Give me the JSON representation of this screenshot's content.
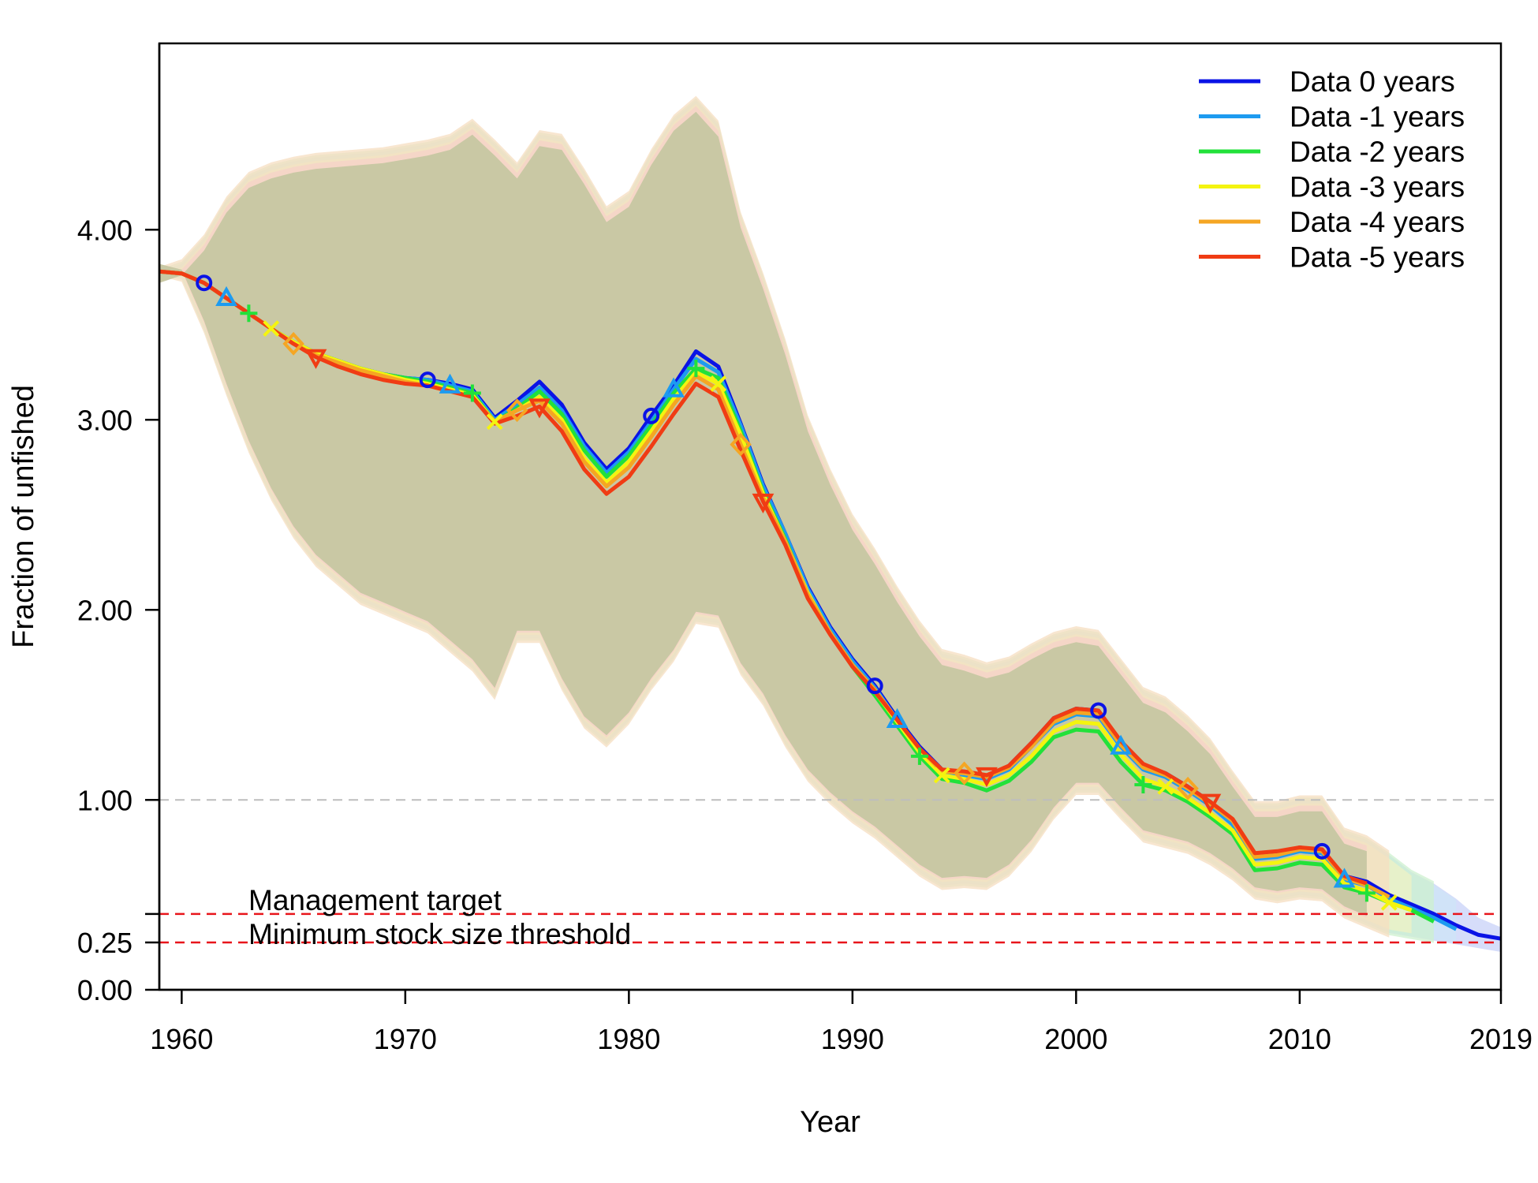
{
  "chart_data": {
    "type": "line",
    "title": "",
    "xlabel": "Year",
    "ylabel": "Fraction of unfished",
    "xlim": [
      1959,
      2019
    ],
    "ylim": [
      0,
      5
    ],
    "x_ticks": [
      "1960",
      "1970",
      "1980",
      "1990",
      "2000",
      "2010",
      "2019"
    ],
    "y_ticks": [
      "0.00",
      "0.25",
      "1.00",
      "2.00",
      "3.00",
      "4.00"
    ],
    "grid": false,
    "legend_position": "top-right",
    "reference_lines": [
      {
        "label": "",
        "y": 1.0,
        "color": "#bdbdbd",
        "style": "dashed"
      },
      {
        "label": "Management target",
        "y": 0.4,
        "color": "#e8151b",
        "style": "dashed"
      },
      {
        "label": "Minimum stock size threshold",
        "y": 0.25,
        "color": "#e8151b",
        "style": "dashed"
      }
    ],
    "series": [
      {
        "name": "Data 0 years",
        "color": "#0a13e6",
        "marker": "circle",
        "end_year": 2019,
        "values": [
          3.78,
          3.77,
          3.72,
          3.64,
          3.56,
          3.48,
          3.41,
          3.35,
          3.31,
          3.27,
          3.24,
          3.22,
          3.21,
          3.19,
          3.16,
          3.01,
          3.1,
          3.2,
          3.08,
          2.88,
          2.74,
          2.85,
          3.02,
          3.18,
          3.36,
          3.28,
          2.98,
          2.66,
          2.4,
          2.12,
          1.91,
          1.74,
          1.6,
          1.43,
          1.28,
          1.16,
          1.14,
          1.12,
          1.18,
          1.3,
          1.43,
          1.48,
          1.47,
          1.3,
          1.18,
          1.14,
          1.07,
          0.99,
          0.89,
          0.71,
          0.72,
          0.75,
          0.73,
          0.6,
          0.57,
          0.5,
          0.45,
          0.4,
          0.34,
          0.29,
          0.27
        ]
      },
      {
        "name": "Data -1 years",
        "color": "#1d9bf0",
        "marker": "triangle",
        "end_year": 2018,
        "values": [
          3.78,
          3.77,
          3.72,
          3.64,
          3.56,
          3.48,
          3.41,
          3.35,
          3.31,
          3.27,
          3.24,
          3.22,
          3.21,
          3.18,
          3.15,
          3.0,
          3.08,
          3.17,
          3.05,
          2.86,
          2.72,
          2.83,
          2.99,
          3.16,
          3.32,
          3.25,
          2.97,
          2.65,
          2.4,
          2.11,
          1.9,
          1.73,
          1.59,
          1.42,
          1.27,
          1.15,
          1.13,
          1.11,
          1.16,
          1.28,
          1.4,
          1.45,
          1.44,
          1.28,
          1.16,
          1.12,
          1.05,
          0.97,
          0.87,
          0.69,
          0.7,
          0.73,
          0.72,
          0.58,
          0.55,
          0.48,
          0.43,
          0.38,
          0.32
        ]
      },
      {
        "name": "Data -2 years",
        "color": "#22e13a",
        "marker": "plus",
        "end_year": 2017,
        "values": [
          3.78,
          3.77,
          3.72,
          3.64,
          3.56,
          3.48,
          3.41,
          3.35,
          3.31,
          3.27,
          3.24,
          3.22,
          3.2,
          3.17,
          3.14,
          2.99,
          3.06,
          3.15,
          3.03,
          2.84,
          2.7,
          2.81,
          2.97,
          3.14,
          3.27,
          3.22,
          2.94,
          2.62,
          2.37,
          2.08,
          1.88,
          1.7,
          1.55,
          1.39,
          1.23,
          1.11,
          1.09,
          1.05,
          1.1,
          1.2,
          1.33,
          1.37,
          1.36,
          1.2,
          1.08,
          1.05,
          0.99,
          0.91,
          0.82,
          0.63,
          0.64,
          0.67,
          0.66,
          0.54,
          0.51,
          0.46,
          0.42,
          0.36
        ]
      },
      {
        "name": "Data -3 years",
        "color": "#f4f410",
        "marker": "cross",
        "end_year": 2016,
        "values": [
          3.78,
          3.77,
          3.72,
          3.64,
          3.56,
          3.48,
          3.41,
          3.35,
          3.31,
          3.27,
          3.24,
          3.21,
          3.19,
          3.16,
          3.13,
          2.99,
          3.05,
          3.12,
          3.0,
          2.8,
          2.67,
          2.78,
          2.94,
          3.11,
          3.25,
          3.19,
          2.92,
          2.61,
          2.36,
          2.09,
          1.88,
          1.71,
          1.57,
          1.41,
          1.25,
          1.13,
          1.11,
          1.08,
          1.13,
          1.23,
          1.36,
          1.41,
          1.4,
          1.24,
          1.11,
          1.07,
          1.01,
          0.93,
          0.84,
          0.66,
          0.67,
          0.7,
          0.69,
          0.56,
          0.52,
          0.46,
          0.42
        ]
      },
      {
        "name": "Data -4 years",
        "color": "#f5a623",
        "marker": "diamond",
        "end_year": 2015,
        "values": [
          3.78,
          3.77,
          3.72,
          3.64,
          3.56,
          3.48,
          3.4,
          3.34,
          3.3,
          3.26,
          3.23,
          3.2,
          3.18,
          3.15,
          3.12,
          2.99,
          3.05,
          3.1,
          2.98,
          2.78,
          2.65,
          2.75,
          2.91,
          3.08,
          3.23,
          3.16,
          2.87,
          2.59,
          2.36,
          2.08,
          1.88,
          1.71,
          1.58,
          1.42,
          1.27,
          1.15,
          1.14,
          1.12,
          1.17,
          1.28,
          1.41,
          1.46,
          1.45,
          1.29,
          1.17,
          1.13,
          1.06,
          0.98,
          0.89,
          0.7,
          0.71,
          0.74,
          0.73,
          0.59,
          0.55,
          0.49
        ]
      },
      {
        "name": "Data -5 years",
        "color": "#f03c14",
        "marker": "triangle-down",
        "end_year": 2014,
        "values": [
          3.78,
          3.77,
          3.72,
          3.64,
          3.56,
          3.48,
          3.4,
          3.33,
          3.28,
          3.24,
          3.21,
          3.19,
          3.18,
          3.15,
          3.12,
          2.98,
          3.02,
          3.07,
          2.94,
          2.74,
          2.61,
          2.7,
          2.86,
          3.03,
          3.19,
          3.12,
          2.84,
          2.57,
          2.34,
          2.06,
          1.87,
          1.7,
          1.57,
          1.42,
          1.27,
          1.16,
          1.15,
          1.13,
          1.18,
          1.3,
          1.43,
          1.48,
          1.47,
          1.31,
          1.19,
          1.14,
          1.07,
          0.99,
          0.9,
          0.72,
          0.73,
          0.75,
          0.74,
          0.6,
          0.56
        ]
      }
    ],
    "uncertainty_band": {
      "lower": [
        3.78,
        3.75,
        3.48,
        3.15,
        2.85,
        2.6,
        2.4,
        2.25,
        2.15,
        2.05,
        2.0,
        1.95,
        1.9,
        1.8,
        1.7,
        1.55,
        1.85,
        1.85,
        1.6,
        1.4,
        1.3,
        1.42,
        1.6,
        1.75,
        1.95,
        1.93,
        1.68,
        1.52,
        1.3,
        1.12,
        1.0,
        0.9,
        0.82,
        0.72,
        0.62,
        0.55,
        0.56,
        0.55,
        0.62,
        0.75,
        0.92,
        1.05,
        1.05,
        0.92,
        0.8,
        0.77,
        0.74,
        0.68,
        0.6,
        0.5,
        0.48,
        0.5,
        0.49,
        0.4,
        0.35,
        0.3,
        0.28,
        0.26,
        0.24,
        0.22,
        0.2
      ],
      "upper": [
        3.78,
        3.82,
        3.95,
        4.15,
        4.28,
        4.33,
        4.36,
        4.38,
        4.39,
        4.4,
        4.41,
        4.43,
        4.45,
        4.48,
        4.56,
        4.45,
        4.33,
        4.5,
        4.48,
        4.3,
        4.1,
        4.18,
        4.4,
        4.58,
        4.68,
        4.55,
        4.07,
        3.75,
        3.4,
        3.0,
        2.72,
        2.48,
        2.3,
        2.1,
        1.92,
        1.77,
        1.74,
        1.7,
        1.73,
        1.8,
        1.86,
        1.89,
        1.87,
        1.72,
        1.57,
        1.52,
        1.42,
        1.3,
        1.13,
        0.97,
        0.97,
        1.0,
        1.0,
        0.83,
        0.79,
        0.71,
        0.62,
        0.56,
        0.48,
        0.38,
        0.33
      ]
    }
  }
}
